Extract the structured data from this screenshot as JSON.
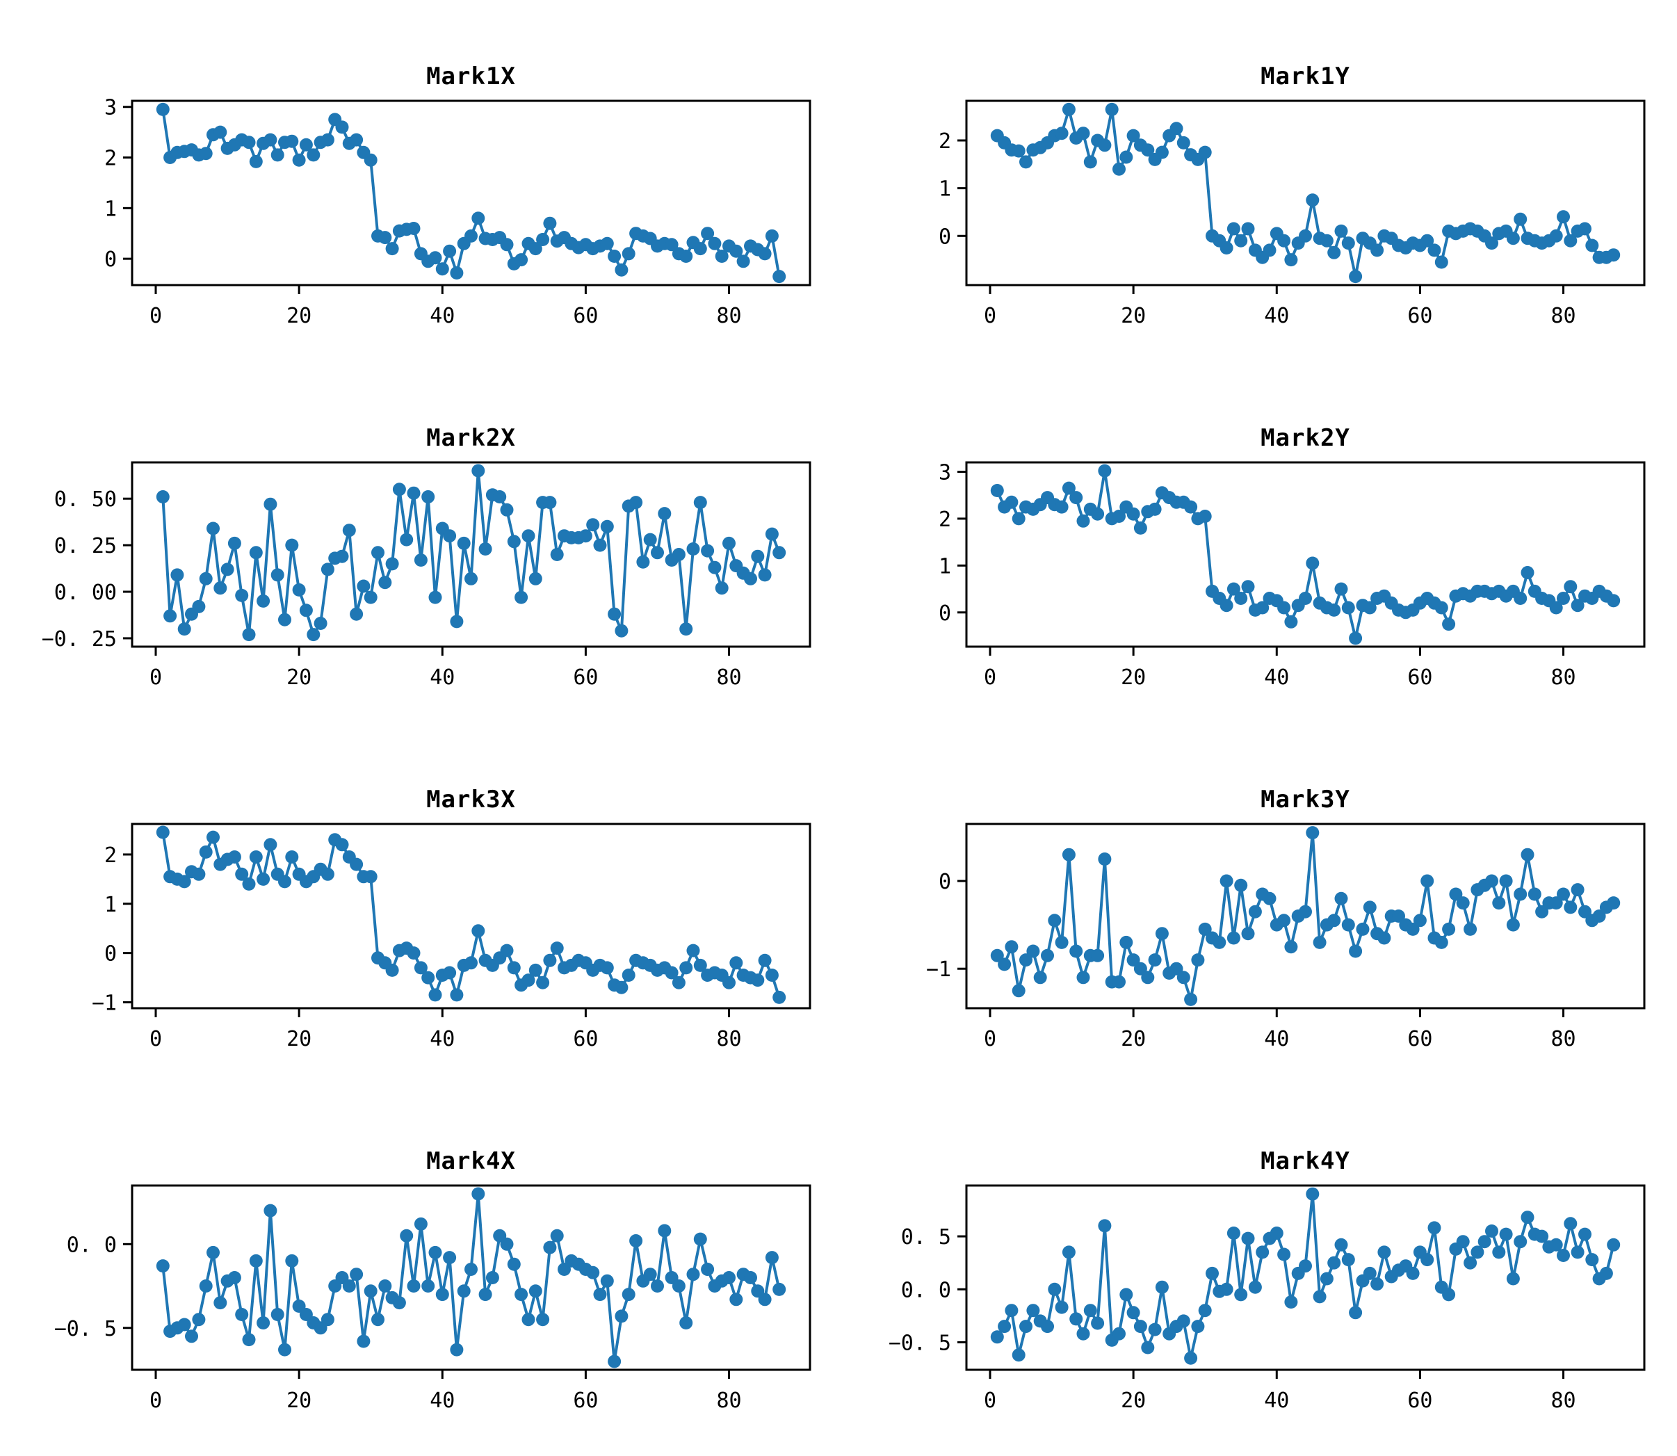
{
  "figure": {
    "background": "#ffffff",
    "accent_color": "#1f77b4",
    "rows": 4,
    "cols": 2
  },
  "chart_data": [
    {
      "type": "line",
      "title": "Mark1X",
      "color": "#1f77b4",
      "x_start": 1,
      "x_step": 1,
      "xlim": [
        -3.3,
        91.3
      ],
      "ylim": [
        -0.52,
        3.12
      ],
      "xticks": {
        "values": [
          0,
          20,
          40,
          60,
          80
        ],
        "labels": [
          "0",
          "20",
          "40",
          "60",
          "80"
        ]
      },
      "yticks": {
        "values": [
          0,
          1,
          2,
          3
        ],
        "labels": [
          "0",
          "1",
          "2",
          "3"
        ]
      },
      "values": [
        2.95,
        2.0,
        2.1,
        2.12,
        2.15,
        2.05,
        2.08,
        2.45,
        2.5,
        2.18,
        2.25,
        2.35,
        2.3,
        1.92,
        2.28,
        2.35,
        2.05,
        2.3,
        2.32,
        1.95,
        2.25,
        2.05,
        2.3,
        2.35,
        2.75,
        2.6,
        2.28,
        2.35,
        2.1,
        1.95,
        0.45,
        0.42,
        0.2,
        0.55,
        0.58,
        0.6,
        0.1,
        -0.05,
        0.02,
        -0.2,
        0.15,
        -0.28,
        0.3,
        0.45,
        0.8,
        0.4,
        0.38,
        0.42,
        0.28,
        -0.1,
        -0.02,
        0.3,
        0.2,
        0.38,
        0.7,
        0.35,
        0.42,
        0.3,
        0.22,
        0.28,
        0.2,
        0.25,
        0.3,
        0.05,
        -0.22,
        0.1,
        0.5,
        0.45,
        0.4,
        0.25,
        0.3,
        0.28,
        0.1,
        0.05,
        0.32,
        0.2,
        0.5,
        0.3,
        0.05,
        0.25,
        0.15,
        -0.05,
        0.25,
        0.18,
        0.1,
        0.45,
        -0.35
      ]
    },
    {
      "type": "line",
      "title": "Mark1Y",
      "color": "#1f77b4",
      "x_start": 1,
      "x_step": 1,
      "xlim": [
        -3.3,
        91.3
      ],
      "ylim": [
        -1.03,
        2.83
      ],
      "xticks": {
        "values": [
          0,
          20,
          40,
          60,
          80
        ],
        "labels": [
          "0",
          "20",
          "40",
          "60",
          "80"
        ]
      },
      "yticks": {
        "values": [
          0,
          1,
          2
        ],
        "labels": [
          "0",
          "1",
          "2"
        ]
      },
      "values": [
        2.1,
        1.95,
        1.8,
        1.78,
        1.55,
        1.8,
        1.85,
        1.95,
        2.1,
        2.15,
        2.65,
        2.05,
        2.15,
        1.55,
        2.0,
        1.9,
        2.65,
        1.4,
        1.65,
        2.1,
        1.9,
        1.8,
        1.6,
        1.75,
        2.1,
        2.25,
        1.95,
        1.7,
        1.6,
        1.75,
        0.0,
        -0.1,
        -0.25,
        0.15,
        -0.1,
        0.15,
        -0.3,
        -0.45,
        -0.3,
        0.05,
        -0.1,
        -0.5,
        -0.15,
        0.0,
        0.75,
        -0.05,
        -0.1,
        -0.35,
        0.1,
        -0.15,
        -0.85,
        -0.05,
        -0.15,
        -0.3,
        0.0,
        -0.05,
        -0.2,
        -0.25,
        -0.15,
        -0.2,
        -0.1,
        -0.3,
        -0.55,
        0.1,
        0.05,
        0.1,
        0.15,
        0.1,
        0.0,
        -0.15,
        0.05,
        0.1,
        -0.05,
        0.35,
        -0.05,
        -0.1,
        -0.15,
        -0.1,
        0.0,
        0.4,
        -0.1,
        0.1,
        0.15,
        -0.2,
        -0.45,
        -0.45,
        -0.4
      ]
    },
    {
      "type": "line",
      "title": "Mark2X",
      "color": "#1f77b4",
      "x_start": 1,
      "x_step": 1,
      "xlim": [
        -3.3,
        91.3
      ],
      "ylim": [
        -0.295,
        0.695
      ],
      "xticks": {
        "values": [
          0,
          20,
          40,
          60,
          80
        ],
        "labels": [
          "0",
          "20",
          "40",
          "60",
          "80"
        ]
      },
      "yticks": {
        "values": [
          -0.25,
          0.0,
          0.25,
          0.5
        ],
        "labels": [
          "−0. 25",
          "0. 00",
          "0. 25",
          "0. 50"
        ]
      },
      "values": [
        0.51,
        -0.13,
        0.09,
        -0.2,
        -0.12,
        -0.08,
        0.07,
        0.34,
        0.02,
        0.12,
        0.26,
        -0.02,
        -0.23,
        0.21,
        -0.05,
        0.47,
        0.09,
        -0.15,
        0.25,
        0.01,
        -0.1,
        -0.23,
        -0.17,
        0.12,
        0.18,
        0.19,
        0.33,
        -0.12,
        0.03,
        -0.03,
        0.21,
        0.05,
        0.15,
        0.55,
        0.28,
        0.53,
        0.17,
        0.51,
        -0.03,
        0.34,
        0.3,
        -0.16,
        0.26,
        0.07,
        0.65,
        0.23,
        0.52,
        0.51,
        0.44,
        0.27,
        -0.03,
        0.3,
        0.07,
        0.48,
        0.48,
        0.2,
        0.3,
        0.29,
        0.29,
        0.3,
        0.36,
        0.25,
        0.35,
        -0.12,
        -0.21,
        0.46,
        0.48,
        0.16,
        0.28,
        0.21,
        0.42,
        0.17,
        0.2,
        -0.2,
        0.23,
        0.48,
        0.22,
        0.13,
        0.02,
        0.26,
        0.14,
        0.1,
        0.07,
        0.19,
        0.09,
        0.31,
        0.21
      ]
    },
    {
      "type": "line",
      "title": "Mark2Y",
      "color": "#1f77b4",
      "x_start": 1,
      "x_step": 1,
      "xlim": [
        -3.3,
        91.3
      ],
      "ylim": [
        -0.73,
        3.2
      ],
      "xticks": {
        "values": [
          0,
          20,
          40,
          60,
          80
        ],
        "labels": [
          "0",
          "20",
          "40",
          "60",
          "80"
        ]
      },
      "yticks": {
        "values": [
          0,
          1,
          2,
          3
        ],
        "labels": [
          "0",
          "1",
          "2",
          "3"
        ]
      },
      "values": [
        2.6,
        2.25,
        2.35,
        2.0,
        2.25,
        2.2,
        2.3,
        2.45,
        2.3,
        2.25,
        2.65,
        2.45,
        1.95,
        2.2,
        2.1,
        3.02,
        2.0,
        2.05,
        2.25,
        2.1,
        1.8,
        2.15,
        2.2,
        2.55,
        2.45,
        2.35,
        2.35,
        2.25,
        2.0,
        2.05,
        0.45,
        0.3,
        0.15,
        0.5,
        0.3,
        0.55,
        0.05,
        0.1,
        0.3,
        0.25,
        0.1,
        -0.2,
        0.15,
        0.3,
        1.05,
        0.2,
        0.1,
        0.05,
        0.5,
        0.1,
        -0.55,
        0.15,
        0.1,
        0.3,
        0.35,
        0.2,
        0.05,
        0.0,
        0.05,
        0.2,
        0.3,
        0.2,
        0.1,
        -0.25,
        0.35,
        0.4,
        0.35,
        0.45,
        0.45,
        0.4,
        0.45,
        0.35,
        0.45,
        0.3,
        0.85,
        0.45,
        0.3,
        0.25,
        0.1,
        0.3,
        0.55,
        0.15,
        0.35,
        0.3,
        0.45,
        0.35,
        0.25
      ]
    },
    {
      "type": "line",
      "title": "Mark3X",
      "color": "#1f77b4",
      "x_start": 1,
      "x_step": 1,
      "xlim": [
        -3.3,
        91.3
      ],
      "ylim": [
        -1.12,
        2.62
      ],
      "xticks": {
        "values": [
          0,
          20,
          40,
          60,
          80
        ],
        "labels": [
          "0",
          "20",
          "40",
          "60",
          "80"
        ]
      },
      "yticks": {
        "values": [
          -1,
          0,
          1,
          2
        ],
        "labels": [
          "−1",
          "0",
          "1",
          "2"
        ]
      },
      "values": [
        2.45,
        1.55,
        1.5,
        1.45,
        1.65,
        1.6,
        2.05,
        2.35,
        1.8,
        1.9,
        1.95,
        1.6,
        1.4,
        1.95,
        1.5,
        2.2,
        1.6,
        1.45,
        1.95,
        1.6,
        1.45,
        1.55,
        1.7,
        1.6,
        2.3,
        2.2,
        1.95,
        1.8,
        1.55,
        1.55,
        -0.1,
        -0.2,
        -0.35,
        0.05,
        0.1,
        0.0,
        -0.3,
        -0.5,
        -0.85,
        -0.45,
        -0.4,
        -0.85,
        -0.25,
        -0.2,
        0.45,
        -0.15,
        -0.25,
        -0.1,
        0.05,
        -0.3,
        -0.65,
        -0.55,
        -0.35,
        -0.6,
        -0.15,
        0.1,
        -0.3,
        -0.25,
        -0.15,
        -0.2,
        -0.35,
        -0.25,
        -0.3,
        -0.65,
        -0.7,
        -0.45,
        -0.15,
        -0.2,
        -0.25,
        -0.35,
        -0.3,
        -0.4,
        -0.6,
        -0.3,
        0.05,
        -0.25,
        -0.45,
        -0.4,
        -0.45,
        -0.6,
        -0.2,
        -0.45,
        -0.5,
        -0.55,
        -0.15,
        -0.45,
        -0.9
      ]
    },
    {
      "type": "line",
      "title": "Mark3Y",
      "color": "#1f77b4",
      "x_start": 1,
      "x_step": 1,
      "xlim": [
        -3.3,
        91.3
      ],
      "ylim": [
        -1.45,
        0.65
      ],
      "xticks": {
        "values": [
          0,
          20,
          40,
          60,
          80
        ],
        "labels": [
          "0",
          "20",
          "40",
          "60",
          "80"
        ]
      },
      "yticks": {
        "values": [
          -1,
          0
        ],
        "labels": [
          "−1",
          "0"
        ]
      },
      "values": [
        -0.85,
        -0.95,
        -0.75,
        -1.25,
        -0.9,
        -0.8,
        -1.1,
        -0.85,
        -0.45,
        -0.7,
        0.3,
        -0.8,
        -1.1,
        -0.85,
        -0.85,
        0.25,
        -1.15,
        -1.15,
        -0.7,
        -0.9,
        -1.0,
        -1.1,
        -0.9,
        -0.6,
        -1.05,
        -1.0,
        -1.1,
        -1.35,
        -0.9,
        -0.55,
        -0.65,
        -0.7,
        0.0,
        -0.65,
        -0.05,
        -0.6,
        -0.35,
        -0.15,
        -0.2,
        -0.5,
        -0.45,
        -0.75,
        -0.4,
        -0.35,
        0.55,
        -0.7,
        -0.5,
        -0.45,
        -0.2,
        -0.5,
        -0.8,
        -0.55,
        -0.3,
        -0.6,
        -0.65,
        -0.4,
        -0.4,
        -0.5,
        -0.55,
        -0.45,
        0.0,
        -0.65,
        -0.7,
        -0.55,
        -0.15,
        -0.25,
        -0.55,
        -0.1,
        -0.05,
        0.0,
        -0.25,
        0.0,
        -0.5,
        -0.15,
        0.3,
        -0.15,
        -0.35,
        -0.25,
        -0.25,
        -0.15,
        -0.3,
        -0.1,
        -0.35,
        -0.45,
        -0.4,
        -0.3,
        -0.25
      ]
    },
    {
      "type": "line",
      "title": "Mark4X",
      "color": "#1f77b4",
      "x_start": 1,
      "x_step": 1,
      "xlim": [
        -3.3,
        91.3
      ],
      "ylim": [
        -0.75,
        0.35
      ],
      "xticks": {
        "values": [
          0,
          20,
          40,
          60,
          80
        ],
        "labels": [
          "0",
          "20",
          "40",
          "60",
          "80"
        ]
      },
      "yticks": {
        "values": [
          -0.5,
          0.0
        ],
        "labels": [
          "−0. 5",
          "0. 0"
        ]
      },
      "values": [
        -0.13,
        -0.52,
        -0.5,
        -0.48,
        -0.55,
        -0.45,
        -0.25,
        -0.05,
        -0.35,
        -0.22,
        -0.2,
        -0.42,
        -0.57,
        -0.1,
        -0.47,
        0.2,
        -0.42,
        -0.63,
        -0.1,
        -0.37,
        -0.42,
        -0.47,
        -0.5,
        -0.45,
        -0.25,
        -0.2,
        -0.25,
        -0.18,
        -0.58,
        -0.28,
        -0.45,
        -0.25,
        -0.32,
        -0.35,
        0.05,
        -0.25,
        0.12,
        -0.25,
        -0.05,
        -0.3,
        -0.08,
        -0.63,
        -0.28,
        -0.15,
        0.3,
        -0.3,
        -0.2,
        0.05,
        0.0,
        -0.12,
        -0.3,
        -0.45,
        -0.28,
        -0.45,
        -0.02,
        0.05,
        -0.15,
        -0.1,
        -0.12,
        -0.15,
        -0.17,
        -0.3,
        -0.22,
        -0.7,
        -0.43,
        -0.3,
        0.02,
        -0.22,
        -0.18,
        -0.25,
        0.08,
        -0.2,
        -0.25,
        -0.47,
        -0.18,
        0.03,
        -0.15,
        -0.25,
        -0.22,
        -0.2,
        -0.33,
        -0.18,
        -0.2,
        -0.28,
        -0.33,
        -0.08,
        -0.27
      ]
    },
    {
      "type": "line",
      "title": "Mark4Y",
      "color": "#1f77b4",
      "x_start": 1,
      "x_step": 1,
      "xlim": [
        -3.3,
        91.3
      ],
      "ylim": [
        -0.76,
        0.98
      ],
      "xticks": {
        "values": [
          0,
          20,
          40,
          60,
          80
        ],
        "labels": [
          "0",
          "20",
          "40",
          "60",
          "80"
        ]
      },
      "yticks": {
        "values": [
          -0.5,
          0.0,
          0.5
        ],
        "labels": [
          "−0. 5",
          "0. 0",
          "0. 5"
        ]
      },
      "values": [
        -0.45,
        -0.35,
        -0.2,
        -0.62,
        -0.35,
        -0.2,
        -0.3,
        -0.35,
        0.0,
        -0.17,
        0.35,
        -0.28,
        -0.42,
        -0.2,
        -0.32,
        0.6,
        -0.48,
        -0.42,
        -0.05,
        -0.22,
        -0.35,
        -0.55,
        -0.38,
        0.02,
        -0.42,
        -0.35,
        -0.3,
        -0.65,
        -0.35,
        -0.2,
        0.15,
        -0.02,
        0.0,
        0.53,
        -0.05,
        0.48,
        0.02,
        0.35,
        0.48,
        0.53,
        0.33,
        -0.12,
        0.15,
        0.22,
        0.9,
        -0.07,
        0.1,
        0.25,
        0.42,
        0.28,
        -0.22,
        0.08,
        0.15,
        0.05,
        0.35,
        0.12,
        0.18,
        0.22,
        0.15,
        0.35,
        0.28,
        0.58,
        0.02,
        -0.05,
        0.38,
        0.45,
        0.25,
        0.35,
        0.45,
        0.55,
        0.35,
        0.52,
        0.1,
        0.45,
        0.68,
        0.52,
        0.5,
        0.4,
        0.42,
        0.32,
        0.62,
        0.35,
        0.52,
        0.28,
        0.1,
        0.15,
        0.42
      ]
    }
  ]
}
